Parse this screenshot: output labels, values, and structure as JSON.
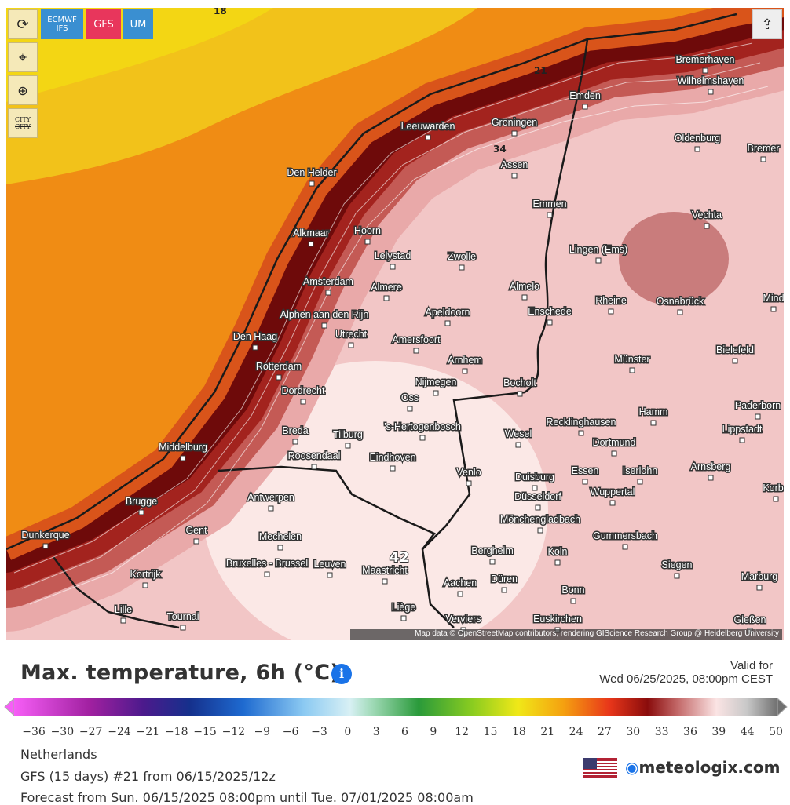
{
  "toolbar": {
    "models": [
      "ECMWF IFS",
      "GFS",
      "UM"
    ],
    "city_toggle": [
      "CITY",
      "CITY"
    ]
  },
  "map": {
    "cities": [
      "Bremerhaven",
      "Wilhelmshaven",
      "Emden",
      "Groningen",
      "Leeuwarden",
      "Oldenburg",
      "Bremer",
      "Den Helder",
      "Assen",
      "Emmen",
      "Vechta",
      "Alkmaar",
      "Hoorn",
      "Lelystad",
      "Zwolle",
      "Lingen (Ems)",
      "Amsterdam",
      "Almere",
      "Almelo",
      "Rheine",
      "Osnabrück",
      "Mind",
      "Alphen aan den Rijn",
      "Apeldoorn",
      "Enschede",
      "Utrecht",
      "Amersfoort",
      "Den Haag",
      "Bielefeld",
      "Münster",
      "Arnhem",
      "Rotterdam",
      "Nijmegen",
      "Bocholt",
      "Dordrecht",
      "Oss",
      "Hamm",
      "Paderborn",
      "Breda",
      "Tilburg",
      "'s-Hertogenbosch",
      "Wesel",
      "Recklinghausen",
      "Lippstadt",
      "Dortmund",
      "Middelburg",
      "Roosendaal",
      "Eindhoven",
      "Venlo",
      "Essen",
      "Duisburg",
      "Iserlohn",
      "Arnsberg",
      "Antwerpen",
      "Brugge",
      "Düsseldorf",
      "Wuppertal",
      "Korba",
      "Mönchengladbach",
      "Dunkerque",
      "Gent",
      "Mechelen",
      "Gummersbach",
      "Bruxelles - Brussel",
      "Leuven",
      "Bergheim",
      "Köln",
      "Maastricht",
      "Siegen",
      "Kortrijk",
      "Marburg",
      "Aachen",
      "Düren",
      "Bonn",
      "Liège",
      "Lille",
      "Tournai",
      "Verviers",
      "Euskirchen",
      "Gießen"
    ],
    "contour_labels": [
      "18",
      "21",
      "34",
      "42"
    ],
    "attribution": "Map data © OpenStreetMap contributors, rendering GIScience Research Group @ Heidelberg University"
  },
  "legend": {
    "title": "Max. temperature, 6h (°C)",
    "valid_for": "Valid for",
    "valid_time": "Wed 06/25/2025, 08:00pm CEST",
    "scale_labels": [
      "−36",
      "−30",
      "−27",
      "−24",
      "−21",
      "−18",
      "−15",
      "−12",
      "−9",
      "−6",
      "−3",
      "0",
      "3",
      "6",
      "9",
      "12",
      "15",
      "18",
      "21",
      "24",
      "27",
      "30",
      "33",
      "36",
      "39",
      "44",
      "50"
    ]
  },
  "footer": {
    "region": "Netherlands",
    "run": "GFS (15 days) #21 from 06/15/2025/12z",
    "forecast_range": "Forecast from Sun. 06/15/2025 08:00pm until Tue. 07/01/2025 08:00am",
    "brand": "meteologix.com"
  }
}
